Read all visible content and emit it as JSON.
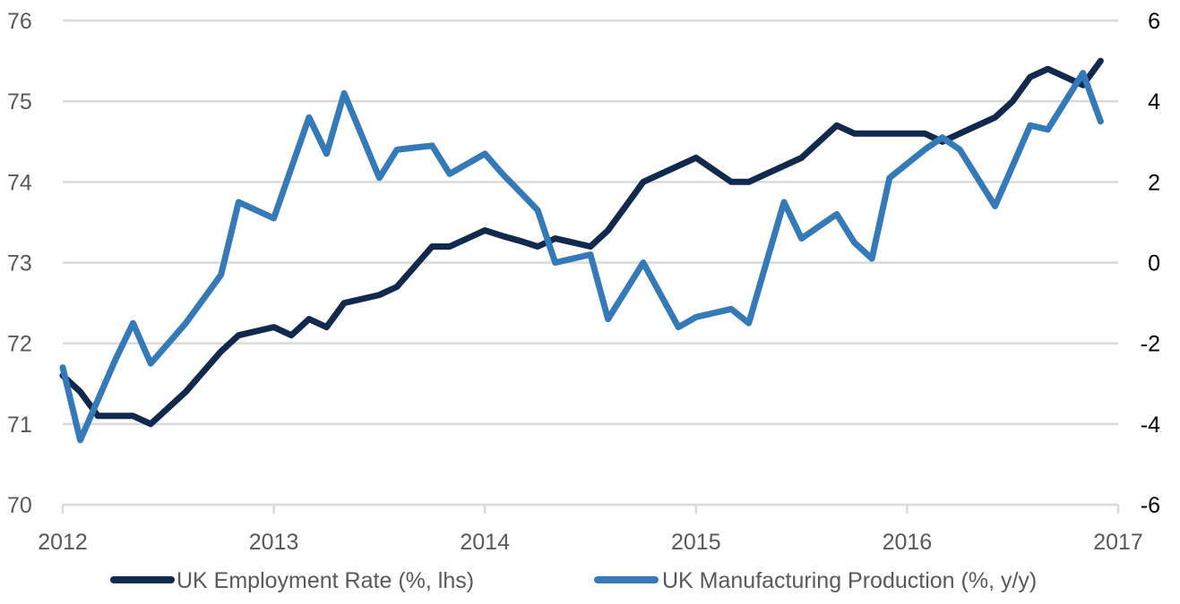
{
  "chart_data": {
    "type": "line",
    "title": "",
    "xlabel": "",
    "ylabel_left": "",
    "ylabel_right": "",
    "x_start": "2012-01",
    "x_frequency": "monthly",
    "x_ticks": [
      "2012",
      "2013",
      "2014",
      "2015",
      "2016",
      "2017"
    ],
    "x_range": [
      2012,
      2017
    ],
    "y_left": {
      "range": [
        70,
        76
      ],
      "ticks": [
        "70",
        "71",
        "72",
        "73",
        "74",
        "75",
        "76"
      ]
    },
    "y_right": {
      "range": [
        -6,
        6
      ],
      "ticks": [
        "-6",
        "-4",
        "-2",
        "0",
        "2",
        "4",
        "6"
      ]
    },
    "grid": true,
    "legend_position": "bottom",
    "series": [
      {
        "name": "UK Employment Rate (%, lhs)",
        "axis": "left",
        "color": "#10294d",
        "values": [
          71.6,
          71.4,
          71.1,
          71.1,
          71.1,
          71.0,
          71.2,
          71.4,
          71.65,
          71.9,
          72.1,
          72.15,
          72.2,
          72.1,
          72.3,
          72.2,
          72.5,
          72.55,
          72.6,
          72.7,
          72.95,
          73.2,
          73.2,
          73.3,
          73.4,
          73.33,
          73.27,
          73.2,
          73.3,
          73.25,
          73.2,
          73.4,
          73.7,
          74.0,
          74.1,
          74.2,
          74.3,
          74.15,
          74.0,
          74.0,
          74.1,
          74.2,
          74.3,
          74.5,
          74.7,
          74.6,
          74.6,
          74.6,
          74.6,
          74.6,
          74.5,
          74.6,
          74.7,
          74.8,
          75.0,
          75.3,
          75.4,
          75.3,
          75.2,
          75.5
        ]
      },
      {
        "name": "UK Manufacturing Production (%, y/y)",
        "axis": "right",
        "color": "#357ab8",
        "values": [
          -2.6,
          -4.4,
          -3.4,
          -2.4,
          -1.5,
          -2.5,
          -2.0,
          -1.5,
          -0.9,
          -0.3,
          1.5,
          1.3,
          1.1,
          2.35,
          3.6,
          2.7,
          4.2,
          3.15,
          2.1,
          2.8,
          2.85,
          2.9,
          2.2,
          2.45,
          2.7,
          2.2,
          1.75,
          1.3,
          0.0,
          0.1,
          0.2,
          -1.4,
          -0.7,
          0.0,
          -0.8,
          -1.6,
          -1.35,
          -1.25,
          -1.15,
          -1.5,
          0.0,
          1.5,
          0.6,
          0.9,
          1.2,
          0.5,
          0.1,
          2.1,
          2.45,
          2.8,
          3.1,
          2.8,
          2.1,
          1.4,
          2.4,
          3.4,
          3.3,
          4.0,
          4.7,
          3.5
        ]
      }
    ]
  }
}
